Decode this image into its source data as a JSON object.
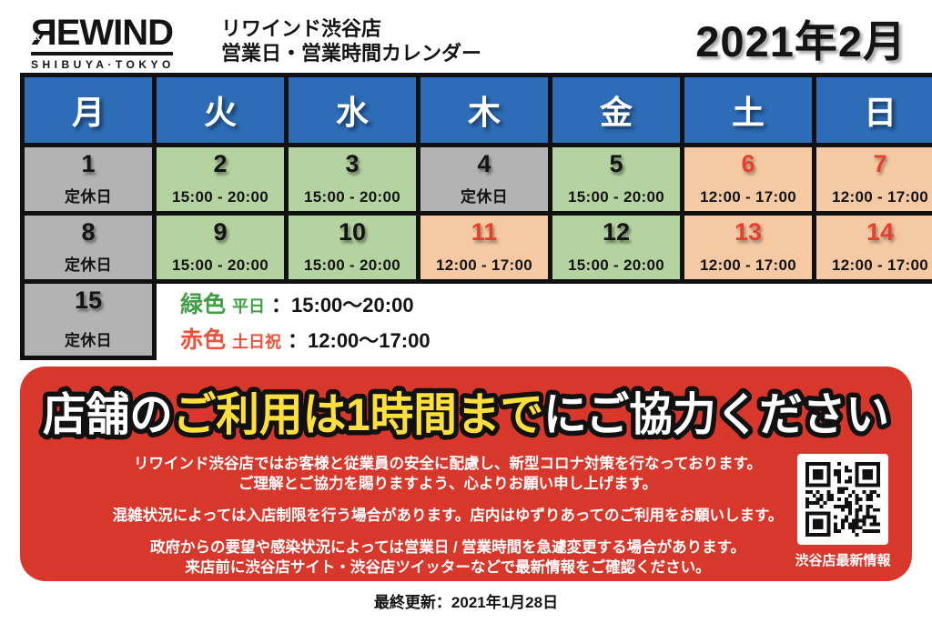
{
  "header": {
    "logo": {
      "brand": "ЯEWIND",
      "rewind_mark": "«",
      "sub": "SHIBUYA·TOKYO"
    },
    "store_title_line1": "リワインド渋谷店",
    "store_title_line2": "営業日・営業時間カレンダー",
    "month_title": "2021年2月"
  },
  "calendar": {
    "weekdays": [
      "月",
      "火",
      "水",
      "木",
      "金",
      "土",
      "日"
    ],
    "weeks": [
      [
        {
          "day": "1",
          "note": "定休日",
          "type": "closed"
        },
        {
          "day": "2",
          "note": "15:00 - 20:00",
          "type": "weekday"
        },
        {
          "day": "3",
          "note": "15:00 - 20:00",
          "type": "weekday"
        },
        {
          "day": "4",
          "note": "定休日",
          "type": "closed"
        },
        {
          "day": "5",
          "note": "15:00 - 20:00",
          "type": "weekday"
        },
        {
          "day": "6",
          "note": "12:00 - 17:00",
          "type": "holiday"
        },
        {
          "day": "7",
          "note": "12:00 - 17:00",
          "type": "holiday"
        }
      ],
      [
        {
          "day": "8",
          "note": "定休日",
          "type": "closed"
        },
        {
          "day": "9",
          "note": "15:00 - 20:00",
          "type": "weekday"
        },
        {
          "day": "10",
          "note": "15:00 - 20:00",
          "type": "weekday"
        },
        {
          "day": "11",
          "note": "12:00 - 17:00",
          "type": "holiday"
        },
        {
          "day": "12",
          "note": "15:00 - 20:00",
          "type": "weekday"
        },
        {
          "day": "13",
          "note": "12:00 - 17:00",
          "type": "holiday"
        },
        {
          "day": "14",
          "note": "12:00 - 17:00",
          "type": "holiday"
        }
      ],
      [
        {
          "day": "15",
          "note": "定休日",
          "type": "closed"
        }
      ]
    ]
  },
  "legend": {
    "green_label": "緑色",
    "green_sub": "平日",
    "green_time": "：15:00〜20:00",
    "red_label": "赤色",
    "red_sub": "土日祝",
    "red_time": "：12:00〜17:00"
  },
  "notice": {
    "headline_part1": "店舗の",
    "headline_highlight": "ご利用は1時間まで",
    "headline_part3": "にご協力ください",
    "lines": [
      "リワインド渋谷店ではお客様と従業員の安全に配慮し、新型コロナ対策を行なっております。",
      "ご理解とご協力を賜りますよう、心よりお願い申し上げます。",
      "混雑状況によっては入店制限を行う場合があります。店内はゆずりあってのご利用をお願いします。",
      "政府からの要望や感染状況によっては営業日 / 営業時間を急遽変更する場合があります。",
      "来店前に渋谷店サイト・渋谷店ツイッターなどで最新情報をご確認ください。"
    ],
    "qr_icon": "qr-code",
    "qr_label": "渋谷店最新情報"
  },
  "footer": {
    "last_updated": "最終更新：2021年1月28日"
  },
  "colors": {
    "header_blue": "#2d6cb7",
    "closed_gray": "#b3b3b3",
    "weekday_green": "#b5d3a0",
    "holiday_peach": "#f5c9a3",
    "holiday_red": "#e8402f",
    "legend_green": "#3f9e43",
    "legend_red": "#ee5238",
    "banner_red": "#d8382c",
    "highlight_yellow": "#ffdf3c",
    "border_black": "#111111"
  }
}
